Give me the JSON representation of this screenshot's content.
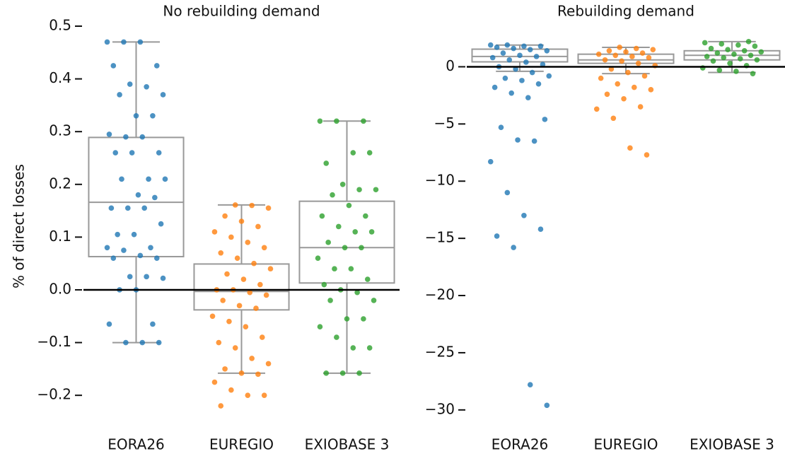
{
  "chart_data": [
    {
      "type": "box",
      "title": "No rebuilding demand",
      "ylabel": "% of direct losses",
      "categories": [
        "EORA26",
        "EUREGIO",
        "EXIOBASE 3"
      ],
      "colors": [
        "#1f77b4",
        "#ff7f0e",
        "#2ca02c"
      ],
      "ylim": [
        -0.24,
        0.5
      ],
      "yticks": [
        {
          "value": -0.2,
          "label": "−0.2"
        },
        {
          "value": -0.1,
          "label": "−0.1"
        },
        {
          "value": 0,
          "label": "0.0"
        },
        0.1,
        0.2,
        0.3,
        0.4,
        0.5
      ],
      "hline": 0,
      "boxes": [
        {
          "whislo": -0.1,
          "q1": 0.063,
          "med": 0.166,
          "q3": 0.289,
          "whishi": 0.47
        },
        {
          "whislo": -0.158,
          "q1": -0.038,
          "med": -0.003,
          "q3": 0.049,
          "whishi": 0.161
        },
        {
          "whislo": -0.158,
          "q1": 0.013,
          "med": 0.08,
          "q3": 0.168,
          "whishi": 0.32
        }
      ],
      "points": [
        [
          0.47,
          0.47,
          0.47,
          0.425,
          0.425,
          0.39,
          0.385,
          0.37,
          0.37,
          0.33,
          0.33,
          0.295,
          0.29,
          0.29,
          0.26,
          0.26,
          0.26,
          0.21,
          0.21,
          0.21,
          0.18,
          0.175,
          0.155,
          0.155,
          0.155,
          0.125,
          0.105,
          0.105,
          0.08,
          0.08,
          0.075,
          0.065,
          0.06,
          0.06,
          0.025,
          0.025,
          0.022,
          0.0,
          0.0,
          -0.065,
          -0.065,
          -0.1,
          -0.1,
          -0.1
        ],
        [
          0.161,
          0.16,
          0.155,
          0.14,
          0.13,
          0.12,
          0.11,
          0.1,
          0.09,
          0.08,
          0.07,
          0.06,
          0.05,
          0.04,
          0.03,
          0.02,
          0.01,
          0.0,
          0.0,
          -0.005,
          -0.01,
          -0.02,
          -0.03,
          -0.035,
          -0.05,
          -0.06,
          -0.07,
          -0.09,
          -0.1,
          -0.11,
          -0.13,
          -0.14,
          -0.15,
          -0.158,
          -0.16,
          -0.175,
          -0.19,
          -0.2,
          -0.2,
          -0.22
        ],
        [
          0.32,
          0.32,
          0.32,
          0.26,
          0.26,
          0.24,
          0.2,
          0.19,
          0.19,
          0.18,
          0.16,
          0.14,
          0.14,
          0.12,
          0.11,
          0.11,
          0.09,
          0.08,
          0.08,
          0.06,
          0.04,
          0.04,
          0.02,
          0.01,
          0.0,
          -0.005,
          -0.02,
          -0.02,
          -0.055,
          -0.055,
          -0.07,
          -0.09,
          -0.11,
          -0.11,
          -0.158,
          -0.158,
          -0.158
        ]
      ]
    },
    {
      "type": "box",
      "title": "Rebuilding demand",
      "categories": [
        "EORA26",
        "EUREGIO",
        "EXIOBASE 3"
      ],
      "colors": [
        "#1f77b4",
        "#ff7f0e",
        "#2ca02c"
      ],
      "ylim": [
        -31,
        2.5
      ],
      "yticks": [
        {
          "value": -30,
          "label": "−30"
        },
        {
          "value": -25,
          "label": "−25"
        },
        {
          "value": -20,
          "label": "−20"
        },
        {
          "value": -15,
          "label": "−15"
        },
        {
          "value": -10,
          "label": "−10"
        },
        {
          "value": -5,
          "label": "−5"
        },
        0
      ],
      "hline": 0,
      "boxes": [
        {
          "whislo": -0.4,
          "q1": 0.43,
          "med": 0.9,
          "q3": 1.54,
          "whishi": 1.9
        },
        {
          "whislo": -0.6,
          "q1": 0.3,
          "med": 0.6,
          "q3": 1.1,
          "whishi": 1.7
        },
        {
          "whislo": -0.5,
          "q1": 0.6,
          "med": 1.0,
          "q3": 1.4,
          "whishi": 2.2
        }
      ],
      "points": [
        [
          1.9,
          1.9,
          1.8,
          1.8,
          1.7,
          1.6,
          1.5,
          1.4,
          1.2,
          1.0,
          0.9,
          0.8,
          0.6,
          0.4,
          0.2,
          0,
          -0.2,
          -0.5,
          -0.8,
          -1,
          -1.2,
          -1.5,
          -1.8,
          -2.3,
          -2.7,
          -4.6,
          -5.3,
          -6.4,
          -6.5,
          -8.3,
          -11,
          -13,
          -14.2,
          -14.8,
          -15.8,
          -27.8,
          -29.6
        ],
        [
          1.7,
          1.6,
          1.5,
          1.4,
          1.3,
          1.2,
          1.1,
          1.0,
          0.9,
          0.8,
          0.6,
          0.5,
          0.3,
          0.1,
          -0.2,
          -0.5,
          -0.8,
          -1.0,
          -1.5,
          -1.8,
          -2.0,
          -2.4,
          -2.8,
          -3.5,
          -3.7,
          -4.5,
          -7.1,
          -7.7
        ],
        [
          2.2,
          2.1,
          2.0,
          1.9,
          1.8,
          1.6,
          1.5,
          1.4,
          1.3,
          1.2,
          1.1,
          1.0,
          0.9,
          0.8,
          0.7,
          0.6,
          0.5,
          0.3,
          0.1,
          -0.1,
          -0.3,
          -0.4,
          -0.6
        ]
      ]
    }
  ]
}
